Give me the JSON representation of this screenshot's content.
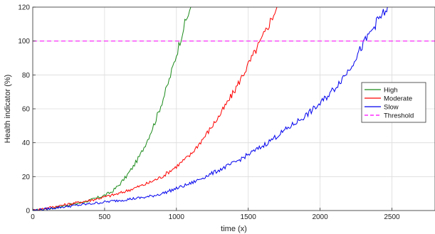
{
  "chart_data": {
    "type": "line",
    "title": "",
    "xlabel": "time (x)",
    "ylabel": "Health indicator (%)",
    "xlim": [
      0,
      2800
    ],
    "ylim": [
      0,
      120
    ],
    "xticks": [
      0,
      500,
      1000,
      1500,
      2000,
      2500
    ],
    "yticks": [
      0,
      20,
      40,
      60,
      80,
      100,
      120
    ],
    "grid": true,
    "legend_position": "right",
    "series": [
      {
        "name": "High",
        "color": "#1a8a1a",
        "x": [
          0,
          100,
          200,
          300,
          400,
          500,
          550,
          600,
          650,
          700,
          750,
          800,
          850,
          900,
          950,
          1000,
          1050,
          1100
        ],
        "y": [
          0,
          1,
          2.5,
          4,
          6,
          9,
          11,
          15,
          20,
          26,
          33,
          42,
          52,
          64,
          77,
          92,
          108,
          120
        ]
      },
      {
        "name": "Moderate",
        "color": "#ff0000",
        "x": [
          0,
          100,
          200,
          300,
          400,
          500,
          600,
          700,
          800,
          900,
          1000,
          1100,
          1200,
          1300,
          1400,
          1500,
          1600,
          1700
        ],
        "y": [
          0,
          1.5,
          3,
          4.5,
          6,
          8,
          10,
          13,
          16,
          20,
          26,
          33,
          44,
          56,
          70,
          86,
          102,
          120
        ]
      },
      {
        "name": "Slow",
        "color": "#0000ee",
        "x": [
          0,
          100,
          200,
          300,
          400,
          500,
          600,
          700,
          800,
          900,
          1000,
          1100,
          1200,
          1300,
          1400,
          1500,
          1600,
          1700,
          1800,
          1900,
          2000,
          2100,
          2200,
          2300,
          2400,
          2480
        ],
        "y": [
          0,
          1,
          2,
          3,
          4,
          5,
          6,
          7,
          8,
          10,
          13,
          16,
          20,
          24,
          28,
          33,
          38,
          44,
          50,
          56,
          63,
          72,
          83,
          98,
          112,
          120
        ]
      },
      {
        "name": "Threshold",
        "color": "#ff00ff",
        "dashed": true,
        "x": [
          0,
          2800
        ],
        "y": [
          100,
          100
        ]
      }
    ]
  }
}
